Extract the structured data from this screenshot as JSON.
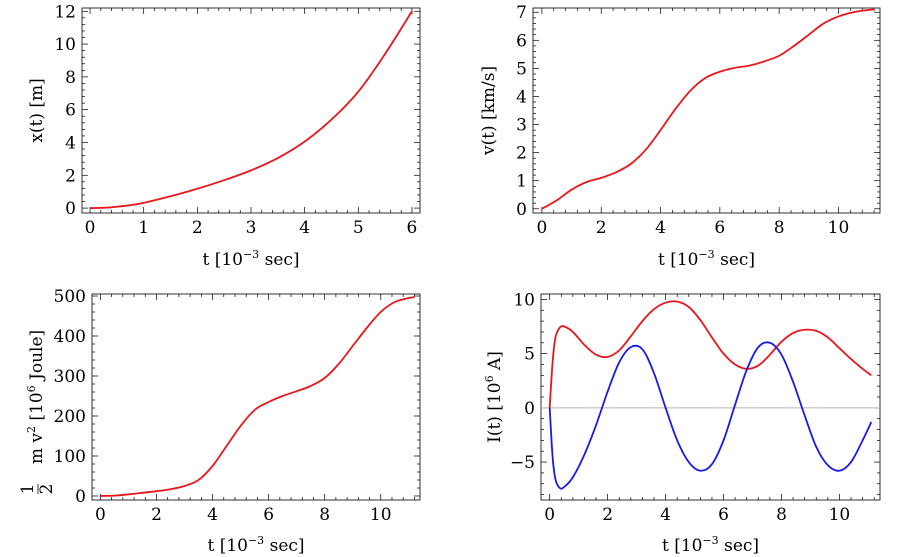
{
  "chart_data": [
    {
      "type": "line",
      "xlabel": "t",
      "xunit": "[10",
      "xunit_exp": "−3",
      "xunit_tail": " sec]",
      "ylabel": "x(t)   [m]",
      "xlim": [
        -0.15,
        6.15
      ],
      "ylim": [
        -0.3,
        12.2
      ],
      "xticks": [
        0,
        1,
        2,
        3,
        4,
        5,
        6
      ],
      "yticks": [
        0,
        2,
        4,
        6,
        8,
        10,
        12
      ],
      "series": [
        {
          "color": "#e8161b",
          "x": [
            0,
            0.25,
            0.5,
            0.75,
            1,
            1.5,
            2,
            2.5,
            3,
            3.5,
            4,
            4.5,
            5,
            5.5,
            6
          ],
          "y": [
            0,
            0.02,
            0.08,
            0.18,
            0.32,
            0.72,
            1.18,
            1.7,
            2.3,
            3.05,
            4.05,
            5.4,
            7.1,
            9.4,
            12.0
          ]
        }
      ]
    },
    {
      "type": "line",
      "xlabel": "t",
      "xunit": "[10",
      "xunit_exp": "−3",
      "xunit_tail": " sec]",
      "ylabel": "v(t)   [km/s]",
      "xlim": [
        -0.3,
        11.4
      ],
      "ylim": [
        -0.15,
        7.15
      ],
      "xticks": [
        0,
        2,
        4,
        6,
        8,
        10
      ],
      "yticks": [
        0,
        1,
        2,
        3,
        4,
        5,
        6,
        7
      ],
      "series": [
        {
          "color": "#e8161b",
          "x": [
            0,
            0.5,
            1,
            1.5,
            2,
            2.5,
            3,
            3.5,
            4,
            4.5,
            5,
            5.5,
            6,
            6.5,
            7,
            7.5,
            8,
            8.5,
            9,
            9.5,
            10,
            10.5,
            11,
            11.2
          ],
          "y": [
            0,
            0.3,
            0.68,
            0.95,
            1.1,
            1.3,
            1.6,
            2.1,
            2.8,
            3.55,
            4.2,
            4.65,
            4.88,
            5.02,
            5.1,
            5.25,
            5.45,
            5.8,
            6.2,
            6.6,
            6.85,
            7.0,
            7.08,
            7.1
          ]
        }
      ]
    },
    {
      "type": "line",
      "xlabel": "t",
      "xunit": "[10",
      "xunit_exp": "−3",
      "xunit_tail": " sec]",
      "ylabel": "m v",
      "ylabel_num": "1",
      "ylabel_den": "2",
      "ylabel_unit": "[10",
      "ylabel_unit_exp": "6",
      "ylabel_unit_tail": " Joule]",
      "ylabel_sq": "2",
      "xlim": [
        -0.3,
        11.4
      ],
      "ylim": [
        -10,
        505
      ],
      "xticks": [
        0,
        2,
        4,
        6,
        8,
        10
      ],
      "yticks": [
        0,
        100,
        200,
        300,
        400,
        500
      ],
      "series": [
        {
          "color": "#e8161b",
          "x": [
            0,
            0.5,
            1,
            1.5,
            2,
            2.5,
            3,
            3.5,
            4,
            4.5,
            5,
            5.5,
            6,
            6.5,
            7,
            7.5,
            8,
            8.5,
            9,
            9.5,
            10,
            10.5,
            11,
            11.2
          ],
          "y": [
            0,
            1,
            4,
            8,
            12,
            17,
            25,
            40,
            75,
            125,
            175,
            215,
            235,
            250,
            262,
            275,
            295,
            330,
            375,
            420,
            460,
            485,
            495,
            497
          ]
        }
      ]
    },
    {
      "type": "line",
      "xlabel": "t",
      "xunit": "[10",
      "xunit_exp": "−3",
      "xunit_tail": " sec]",
      "ylabel": "I(t)   [10",
      "ylabel_exp": "6",
      "ylabel_tail": " A]",
      "xlim": [
        -0.3,
        11.4
      ],
      "ylim": [
        -8.5,
        10.5
      ],
      "xticks": [
        0,
        2,
        4,
        6,
        8,
        10
      ],
      "yticks": [
        -5,
        0,
        5,
        10
      ],
      "ytick_labels": [
        "−5",
        "0",
        "5",
        "10"
      ],
      "series": [
        {
          "color": "#e8161b",
          "x": [
            0,
            0.1,
            0.2,
            0.35,
            0.5,
            0.8,
            1.2,
            1.6,
            2,
            2.4,
            2.8,
            3.2,
            3.6,
            4,
            4.4,
            4.8,
            5.2,
            5.6,
            6,
            6.4,
            6.8,
            7.2,
            7.6,
            8,
            8.4,
            8.8,
            9.2,
            9.6,
            10,
            10.4,
            10.8,
            11.1
          ],
          "y": [
            0,
            4.2,
            6.5,
            7.4,
            7.5,
            7.0,
            5.8,
            4.9,
            4.7,
            5.3,
            6.6,
            8.0,
            9.1,
            9.7,
            9.8,
            9.3,
            8.1,
            6.5,
            5.0,
            4.0,
            3.6,
            3.9,
            4.9,
            6.1,
            6.9,
            7.2,
            7.1,
            6.5,
            5.5,
            4.5,
            3.6,
            3.0
          ]
        },
        {
          "color": "#1a1ae6",
          "x": [
            0,
            0.1,
            0.2,
            0.35,
            0.5,
            0.8,
            1.2,
            1.6,
            2,
            2.4,
            2.8,
            3.2,
            3.6,
            4,
            4.4,
            4.8,
            5.2,
            5.6,
            6,
            6.4,
            6.8,
            7.2,
            7.6,
            8,
            8.4,
            8.8,
            9.2,
            9.6,
            10,
            10.4,
            10.8,
            11.1
          ],
          "y": [
            0,
            -4.5,
            -6.6,
            -7.4,
            -7.3,
            -6.4,
            -4.3,
            -1.6,
            1.5,
            4.2,
            5.6,
            5.4,
            3.2,
            0.0,
            -3.0,
            -5.0,
            -5.8,
            -5.2,
            -3.0,
            0.3,
            3.5,
            5.6,
            6.0,
            4.9,
            2.4,
            -0.7,
            -3.6,
            -5.3,
            -5.8,
            -5.0,
            -3.0,
            -1.3
          ]
        }
      ],
      "zero_line": true
    }
  ]
}
